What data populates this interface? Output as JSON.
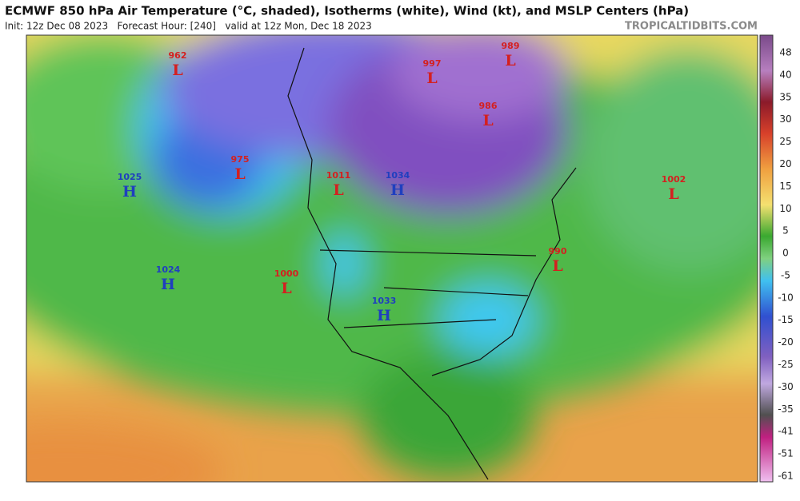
{
  "header": {
    "title": "ECMWF 850 hPa Air Temperature (°C, shaded), Isotherms (white), Wind (kt), and MSLP Centers (hPa)",
    "info": "Init: 12z Dec 08 2023   Forecast Hour: [240]   valid at 12z Mon, Dec 18 2023",
    "site": "TROPICALTIDBITS.COM"
  },
  "centers": [
    {
      "value": "962",
      "letter": "L"
    },
    {
      "value": "997",
      "letter": "L"
    },
    {
      "value": "989",
      "letter": "L"
    },
    {
      "value": "986",
      "letter": "L"
    },
    {
      "value": "975",
      "letter": "L"
    },
    {
      "value": "1011",
      "letter": "L"
    },
    {
      "value": "1034",
      "letter": "H"
    },
    {
      "value": "1025",
      "letter": "H"
    },
    {
      "value": "1002",
      "letter": "L"
    },
    {
      "value": "990",
      "letter": "L"
    },
    {
      "value": "1024",
      "letter": "H"
    },
    {
      "value": "1000",
      "letter": "L"
    },
    {
      "value": "1033",
      "letter": "H"
    }
  ],
  "colorbar": {
    "ticks": [
      48,
      40,
      35,
      30,
      25,
      20,
      15,
      10,
      5,
      0,
      -5,
      -10,
      -15,
      -20,
      -25,
      -30,
      -35,
      -41,
      -51,
      -61
    ]
  }
}
